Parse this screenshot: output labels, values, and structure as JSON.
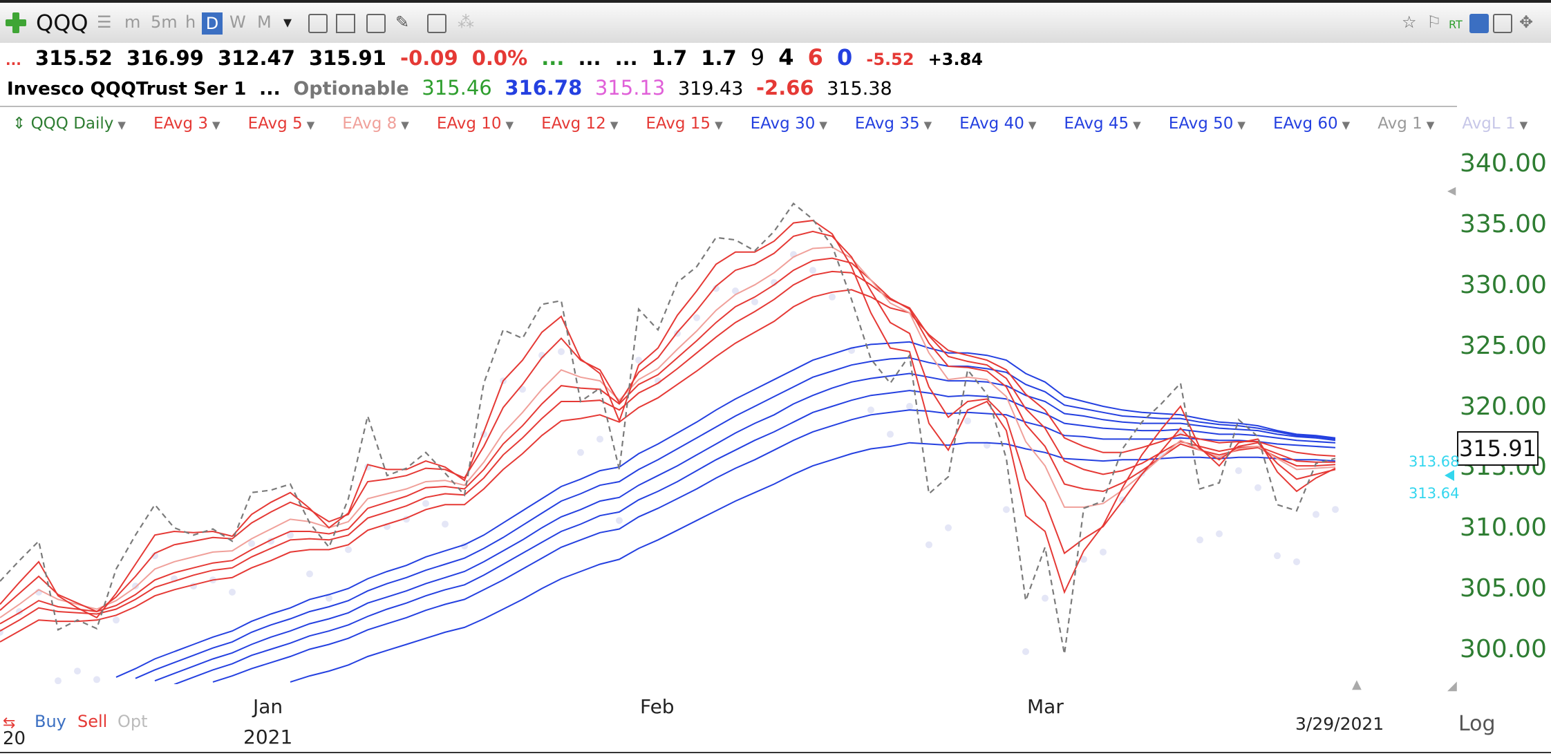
{
  "toolbar": {
    "symbol": "QQQ",
    "timeframes": [
      "m",
      "5m",
      "h",
      "D",
      "W",
      "M"
    ],
    "active_timeframe": "D"
  },
  "quote": {
    "prefix": "...",
    "open": "315.52",
    "high": "316.99",
    "low": "312.47",
    "close": "315.91",
    "change": "-0.09",
    "change_pct": "0.0%",
    "dots1": "...",
    "dots2": "...",
    "dots3": "...",
    "v1": "1.7",
    "v2": "1.7",
    "n9": "9",
    "n4": "4",
    "n6": "6",
    "n0": "0",
    "neg": "-5.52",
    "pos": "+3.84"
  },
  "info": {
    "name": "Invesco QQQTrust Ser 1",
    "dots": "...",
    "optionable": "Optionable",
    "p1": "315.46",
    "p2": "316.78",
    "p3": "315.13",
    "p4": "319.43",
    "p5": "-2.66",
    "p6": "315.38"
  },
  "legend": [
    {
      "label": "QQQ Daily",
      "color": "#2e7d32",
      "prefix": "⇕"
    },
    {
      "label": "EAvg 3",
      "color": "#e53935"
    },
    {
      "label": "EAvg 5",
      "color": "#e53935"
    },
    {
      "label": "EAvg 8",
      "color": "#f0a09a"
    },
    {
      "label": "EAvg 10",
      "color": "#e53935"
    },
    {
      "label": "EAvg 12",
      "color": "#e53935"
    },
    {
      "label": "EAvg 15",
      "color": "#e53935"
    },
    {
      "label": "EAvg 30",
      "color": "#2440e0"
    },
    {
      "label": "EAvg 35",
      "color": "#2440e0"
    },
    {
      "label": "EAvg 40",
      "color": "#2440e0"
    },
    {
      "label": "EAvg 45",
      "color": "#2440e0"
    },
    {
      "label": "EAvg 50",
      "color": "#2440e0"
    },
    {
      "label": "EAvg 60",
      "color": "#2440e0"
    },
    {
      "label": "Avg 1",
      "color": "#999999"
    },
    {
      "label": "AvgL 1",
      "color": "#c7c7e8"
    }
  ],
  "side": {
    "last_price": "315.91",
    "cyan1": "313.68",
    "cyan2": "313.64",
    "log": "Log",
    "date": "3/29/2021"
  },
  "bottom": {
    "buy": "Buy",
    "sell": "Sell",
    "opt": "Opt",
    "left": "20"
  },
  "chart_data": {
    "type": "line",
    "ylim": [
      297.5,
      342
    ],
    "yticks": [
      "340.00",
      "335.00",
      "330.00",
      "325.00",
      "320.00",
      "315.00",
      "310.00",
      "305.00",
      "300.00"
    ],
    "ytick_values": [
      340,
      335,
      330,
      325,
      320,
      315,
      310,
      305,
      300
    ],
    "xticks": [
      {
        "label": "Jan",
        "i": 14
      },
      {
        "label": "Feb",
        "i": 34
      },
      {
        "label": "Mar",
        "i": 54
      }
    ],
    "year_label": "2021",
    "close": [
      305.8,
      307.5,
      309.1,
      301.8,
      302.6,
      301.9,
      306.8,
      309.6,
      312.1,
      310.2,
      309.6,
      310.1,
      309.1,
      313.1,
      313.3,
      313.8,
      310.6,
      308.6,
      312.6,
      319.4,
      314.5,
      315.1,
      316.4,
      314.7,
      312.9,
      322.1,
      326.5,
      325.8,
      328.6,
      328.9,
      320.6,
      321.7,
      315.0,
      328.2,
      326.5,
      330.4,
      331.7,
      334.1,
      333.9,
      333.0,
      334.6,
      336.9,
      335.6,
      333.4,
      329.0,
      324.1,
      322.1,
      324.4,
      313.0,
      314.4,
      323.2,
      321.2,
      315.9,
      304.2,
      308.6,
      299.8,
      311.8,
      312.4,
      316.7,
      318.9,
      320.4,
      322.1,
      313.4,
      313.9,
      319.1,
      317.7,
      312.1,
      311.6,
      315.5,
      315.91
    ],
    "series": [
      {
        "name": "EAvg 3",
        "color": "#e53935",
        "values": [
          303.9,
          305.7,
          307.4,
          304.6,
          303.6,
          302.8,
          304.8,
          307.2,
          309.6,
          309.9,
          309.8,
          309.9,
          309.5,
          311.3,
          312.3,
          313.1,
          311.8,
          310.2,
          311.4,
          315.4,
          315.0,
          315.0,
          315.7,
          315.2,
          314.1,
          318.1,
          322.3,
          324.0,
          326.3,
          327.6,
          324.1,
          322.9,
          319.0,
          323.6,
          325.0,
          327.7,
          329.7,
          331.9,
          332.9,
          332.9,
          333.8,
          335.3,
          335.5,
          334.4,
          331.7,
          327.9,
          325.0,
          324.7,
          318.8,
          316.6,
          319.9,
          320.6,
          318.2,
          311.2,
          309.9,
          304.9,
          308.3,
          310.4,
          313.5,
          316.2,
          318.3,
          320.2,
          316.8,
          315.3,
          317.2,
          317.5,
          314.8,
          313.2,
          314.3,
          315.1
        ]
      },
      {
        "name": "EAvg 5",
        "color": "#e53935",
        "values": [
          303.4,
          304.8,
          306.2,
          304.7,
          304.0,
          303.3,
          304.5,
          306.2,
          308.1,
          308.8,
          309.1,
          309.4,
          309.3,
          310.6,
          311.5,
          312.3,
          311.7,
          310.7,
          311.3,
          314.0,
          314.2,
          314.5,
          315.1,
          315.0,
          314.3,
          316.9,
          320.1,
          322.0,
          324.2,
          325.8,
          324.0,
          323.2,
          320.5,
          323.0,
          324.2,
          326.3,
          328.1,
          330.1,
          331.4,
          331.9,
          332.8,
          334.2,
          334.6,
          334.2,
          332.5,
          329.7,
          327.1,
          326.2,
          321.8,
          319.3,
          320.6,
          320.8,
          319.2,
          314.2,
          312.3,
          308.1,
          309.3,
          310.3,
          312.4,
          314.6,
          316.5,
          318.4,
          316.7,
          315.8,
          316.9,
          317.2,
          315.5,
          314.2,
          314.6,
          315.0
        ]
      },
      {
        "name": "EAvg 8",
        "color": "#f0a09a",
        "values": [
          302.8,
          303.9,
          305.1,
          304.3,
          303.9,
          303.5,
          304.2,
          305.3,
          306.8,
          307.4,
          307.8,
          308.2,
          308.3,
          309.3,
          310.1,
          310.9,
          310.7,
          310.2,
          310.7,
          312.6,
          313.0,
          313.4,
          314.0,
          314.1,
          313.7,
          315.6,
          318.0,
          319.7,
          321.6,
          323.2,
          322.6,
          322.3,
          320.7,
          322.4,
          323.3,
          324.9,
          326.4,
          328.1,
          329.4,
          330.2,
          331.2,
          332.5,
          333.2,
          333.3,
          332.4,
          330.6,
          328.7,
          327.9,
          324.6,
          322.4,
          322.6,
          322.4,
          321.0,
          317.3,
          315.3,
          311.9,
          311.9,
          312.2,
          313.3,
          314.6,
          316.0,
          317.4,
          316.6,
          316.0,
          316.7,
          316.9,
          315.9,
          315.0,
          315.1,
          315.2
        ]
      },
      {
        "name": "EAvg 10",
        "color": "#e53935",
        "values": [
          302.3,
          303.2,
          304.2,
          303.7,
          303.5,
          303.3,
          303.8,
          304.7,
          305.9,
          306.5,
          306.9,
          307.3,
          307.5,
          308.4,
          309.2,
          309.9,
          309.9,
          309.7,
          310.1,
          311.8,
          312.3,
          312.8,
          313.5,
          313.6,
          313.4,
          315.0,
          317.1,
          318.6,
          320.4,
          321.9,
          321.7,
          321.6,
          320.4,
          322.0,
          322.8,
          324.2,
          325.6,
          327.1,
          328.4,
          329.2,
          330.2,
          331.4,
          332.2,
          332.4,
          332.0,
          330.6,
          329.1,
          328.2,
          325.4,
          323.5,
          323.4,
          323.1,
          321.8,
          318.7,
          316.9,
          313.8,
          313.4,
          313.2,
          313.9,
          314.9,
          316.0,
          317.1,
          316.6,
          316.2,
          316.6,
          316.8,
          316.0,
          315.3,
          315.3,
          315.4
        ]
      },
      {
        "name": "EAvg 12",
        "color": "#e53935",
        "values": [
          301.7,
          302.6,
          303.6,
          303.3,
          303.2,
          303.1,
          303.5,
          304.3,
          305.3,
          305.8,
          306.3,
          306.7,
          306.9,
          307.8,
          308.5,
          309.2,
          309.3,
          309.2,
          309.6,
          311.0,
          311.5,
          312.0,
          312.7,
          313.0,
          312.9,
          314.3,
          316.2,
          317.6,
          319.2,
          320.6,
          320.6,
          320.7,
          319.9,
          321.3,
          322.1,
          323.3,
          324.6,
          325.9,
          327.1,
          328.0,
          329.0,
          330.2,
          331.0,
          331.3,
          331.2,
          330.2,
          329.0,
          328.3,
          326.0,
          324.3,
          323.9,
          323.6,
          322.5,
          320.0,
          318.4,
          315.7,
          315.0,
          314.6,
          314.9,
          315.5,
          316.4,
          317.3,
          316.9,
          316.5,
          316.8,
          316.9,
          316.3,
          315.7,
          315.6,
          315.6
        ]
      },
      {
        "name": "EAvg 15",
        "color": "#e53935",
        "values": [
          300.8,
          301.7,
          302.6,
          302.5,
          302.5,
          302.6,
          303.0,
          303.7,
          304.6,
          305.1,
          305.5,
          305.9,
          306.1,
          306.9,
          307.5,
          308.2,
          308.4,
          308.4,
          308.8,
          310.0,
          310.5,
          311.0,
          311.7,
          312.1,
          312.1,
          313.4,
          315.0,
          316.3,
          317.8,
          319.0,
          319.2,
          319.5,
          318.9,
          320.1,
          320.9,
          322.0,
          323.1,
          324.3,
          325.4,
          326.3,
          327.2,
          328.4,
          329.2,
          329.6,
          329.8,
          329.2,
          328.3,
          327.9,
          326.1,
          324.8,
          324.4,
          324.0,
          323.2,
          321.2,
          319.9,
          317.6,
          316.9,
          316.4,
          316.4,
          316.8,
          317.3,
          317.9,
          317.5,
          317.2,
          317.3,
          317.3,
          316.8,
          316.4,
          316.2,
          316.1
        ]
      },
      {
        "name": "EAvg 30",
        "color": "#2440e0",
        "values": [
          null,
          null,
          null,
          null,
          null,
          null,
          297.9,
          298.6,
          299.4,
          300.0,
          300.6,
          301.2,
          301.7,
          302.5,
          303.1,
          303.6,
          304.3,
          304.7,
          305.2,
          306.0,
          306.6,
          307.1,
          307.8,
          308.3,
          308.8,
          309.6,
          310.6,
          311.6,
          312.6,
          313.6,
          314.2,
          314.9,
          315.2,
          316.3,
          317.1,
          318.0,
          318.9,
          319.9,
          320.8,
          321.6,
          322.4,
          323.2,
          324.0,
          324.5,
          325.0,
          325.3,
          325.4,
          325.5,
          325.0,
          324.6,
          324.6,
          324.4,
          324.0,
          322.9,
          322.2,
          321.0,
          320.6,
          320.2,
          319.9,
          319.7,
          319.6,
          319.5,
          319.2,
          318.9,
          318.8,
          318.6,
          318.2,
          317.9,
          317.8,
          317.6
        ]
      },
      {
        "name": "EAvg 35",
        "color": "#2440e0",
        "values": [
          null,
          null,
          null,
          null,
          null,
          null,
          null,
          297.8,
          298.5,
          299.1,
          299.7,
          300.3,
          300.8,
          301.6,
          302.2,
          302.7,
          303.3,
          303.7,
          304.2,
          305.0,
          305.6,
          306.1,
          306.7,
          307.2,
          307.7,
          308.5,
          309.4,
          310.4,
          311.4,
          312.4,
          313.0,
          313.7,
          314.0,
          315.0,
          315.8,
          316.7,
          317.6,
          318.5,
          319.4,
          320.2,
          321.0,
          321.8,
          322.6,
          323.1,
          323.6,
          323.9,
          324.1,
          324.2,
          323.8,
          323.5,
          323.5,
          323.3,
          323.0,
          322.0,
          321.4,
          320.3,
          320.0,
          319.7,
          319.4,
          319.3,
          319.2,
          319.2,
          318.9,
          318.7,
          318.6,
          318.4,
          318.1,
          317.8,
          317.7,
          317.5
        ]
      },
      {
        "name": "EAvg 40",
        "color": "#2440e0",
        "values": [
          null,
          null,
          null,
          null,
          null,
          null,
          null,
          null,
          297.6,
          298.2,
          298.8,
          299.4,
          299.9,
          300.6,
          301.2,
          301.7,
          302.3,
          302.7,
          303.2,
          304.0,
          304.5,
          305.0,
          305.6,
          306.1,
          306.6,
          307.4,
          308.3,
          309.2,
          310.2,
          311.1,
          311.7,
          312.4,
          312.7,
          313.7,
          314.5,
          315.3,
          316.2,
          317.1,
          318.0,
          318.8,
          319.5,
          320.4,
          321.1,
          321.7,
          322.2,
          322.5,
          322.7,
          322.9,
          322.6,
          322.3,
          322.3,
          322.2,
          321.9,
          321.1,
          320.6,
          319.6,
          319.4,
          319.1,
          318.9,
          318.8,
          318.8,
          318.8,
          318.6,
          318.4,
          318.3,
          318.2,
          317.9,
          317.7,
          317.6,
          317.4
        ]
      },
      {
        "name": "EAvg 45",
        "color": "#2440e0",
        "values": [
          null,
          null,
          null,
          null,
          null,
          null,
          null,
          null,
          null,
          297.3,
          297.9,
          298.5,
          299.0,
          299.7,
          300.2,
          300.7,
          301.3,
          301.7,
          302.2,
          302.9,
          303.5,
          304.0,
          304.6,
          305.1,
          305.5,
          306.3,
          307.2,
          308.1,
          309.0,
          309.9,
          310.5,
          311.2,
          311.5,
          312.5,
          313.2,
          314.0,
          314.9,
          315.8,
          316.6,
          317.4,
          318.1,
          318.9,
          319.7,
          320.2,
          320.7,
          321.1,
          321.3,
          321.5,
          321.3,
          321.0,
          321.1,
          321.0,
          320.8,
          320.1,
          319.6,
          318.8,
          318.6,
          318.4,
          318.3,
          318.2,
          318.2,
          318.3,
          318.1,
          317.9,
          317.9,
          317.8,
          317.6,
          317.4,
          317.3,
          317.2
        ]
      },
      {
        "name": "EAvg 50",
        "color": "#2440e0",
        "values": [
          null,
          null,
          null,
          null,
          null,
          null,
          null,
          null,
          null,
          null,
          null,
          297.5,
          298.0,
          298.6,
          299.1,
          299.6,
          300.2,
          300.6,
          301.1,
          301.8,
          302.3,
          302.8,
          303.4,
          303.9,
          304.3,
          305.1,
          305.9,
          306.8,
          307.7,
          308.6,
          309.2,
          309.8,
          310.1,
          311.1,
          311.8,
          312.6,
          313.4,
          314.3,
          315.1,
          315.8,
          316.6,
          317.4,
          318.1,
          318.6,
          319.1,
          319.5,
          319.7,
          319.9,
          319.8,
          319.6,
          319.7,
          319.6,
          319.5,
          318.9,
          318.5,
          317.8,
          317.7,
          317.5,
          317.5,
          317.5,
          317.5,
          317.6,
          317.5,
          317.4,
          317.4,
          317.3,
          317.1,
          317.0,
          316.9,
          316.8
        ]
      },
      {
        "name": "EAvg 60",
        "color": "#2440e0",
        "values": [
          null,
          null,
          null,
          null,
          null,
          null,
          null,
          null,
          null,
          null,
          null,
          null,
          null,
          null,
          null,
          297.5,
          298.0,
          298.4,
          298.9,
          299.6,
          300.1,
          300.6,
          301.1,
          301.6,
          302.0,
          302.7,
          303.5,
          304.3,
          305.2,
          306.0,
          306.6,
          307.2,
          307.6,
          308.5,
          309.2,
          310.0,
          310.8,
          311.6,
          312.4,
          313.1,
          313.8,
          314.6,
          315.3,
          315.8,
          316.3,
          316.7,
          316.9,
          317.2,
          317.1,
          317.0,
          317.2,
          317.2,
          317.1,
          316.7,
          316.4,
          315.9,
          315.8,
          315.7,
          315.8,
          315.8,
          315.9,
          316.0,
          316.0,
          315.9,
          316.0,
          316.0,
          315.9,
          315.8,
          315.8,
          315.7
        ]
      }
    ]
  }
}
